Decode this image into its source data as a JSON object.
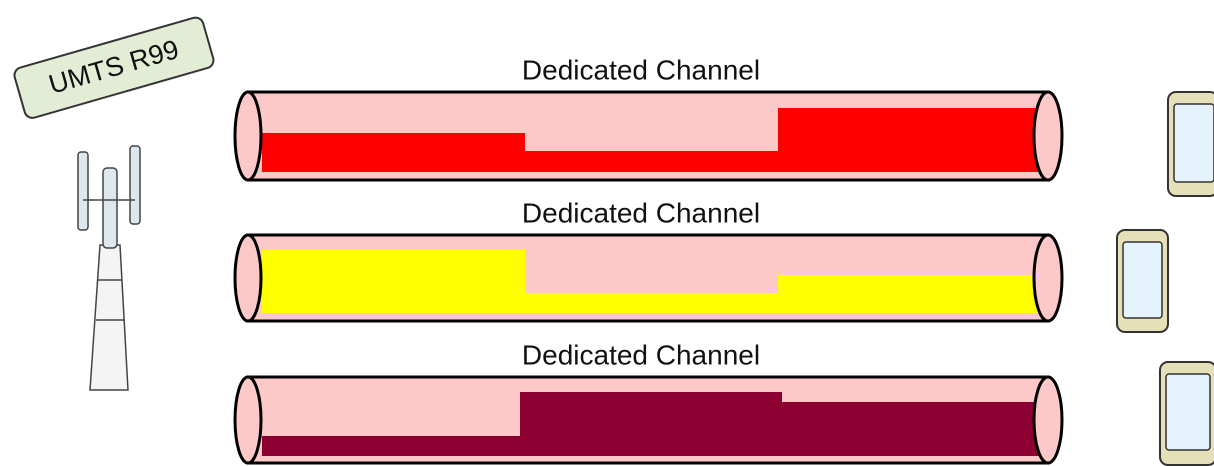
{
  "tag": {
    "label": "UMTS R99"
  },
  "channels": [
    {
      "label": "Dedicated Channel"
    },
    {
      "label": "Dedicated Channel"
    },
    {
      "label": "Dedicated Channel"
    }
  ]
}
